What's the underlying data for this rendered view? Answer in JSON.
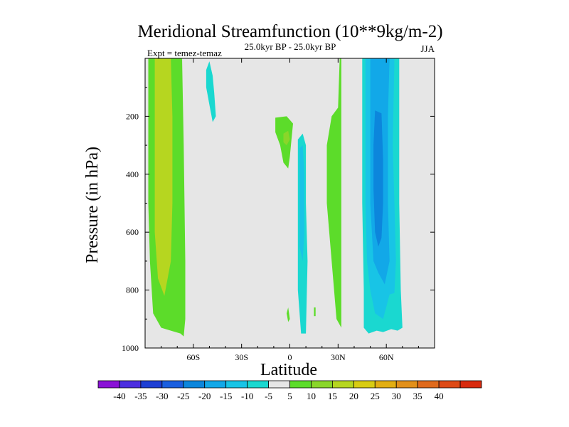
{
  "chart_data": {
    "type": "contour",
    "title": "Meridional Streamfunction (10**9kg/m-2)",
    "subtitle": "25.0kyr BP - 25.0kyr BP",
    "experiment_label": "Expt = temez-temaz",
    "season": "JJA",
    "xlabel": "Latitude",
    "ylabel": "Pressure (in hPa)",
    "xlim": [
      -90,
      90
    ],
    "ylim": [
      1000,
      0
    ],
    "x_ticks": [
      {
        "value": -60,
        "label": "60S"
      },
      {
        "value": -30,
        "label": "30S"
      },
      {
        "value": 0,
        "label": "0"
      },
      {
        "value": 30,
        "label": "30N"
      },
      {
        "value": 60,
        "label": "60N"
      }
    ],
    "y_ticks": [
      {
        "value": 200,
        "label": "200"
      },
      {
        "value": 400,
        "label": "400"
      },
      {
        "value": 600,
        "label": "600"
      },
      {
        "value": 800,
        "label": "800"
      },
      {
        "value": 1000,
        "label": "1000"
      }
    ],
    "background_color": "#e6e6e6",
    "colorbar": {
      "colors": [
        "#8a12d6",
        "#4c2ee0",
        "#1e3fd4",
        "#1a5fe0",
        "#0c86dc",
        "#12a8e8",
        "#18c4e6",
        "#1ad8d0",
        "#e6e6e6",
        "#5cdc2a",
        "#8ad62a",
        "#b6d620",
        "#d8cc12",
        "#e2ae12",
        "#e2901a",
        "#e06a1c",
        "#de4a16",
        "#d82a0e"
      ],
      "tick_labels": [
        "-40",
        "-35",
        "-30",
        "-25",
        "-20",
        "-15",
        "-10",
        "-5",
        "5",
        "10",
        "15",
        "20",
        "25",
        "30",
        "35",
        "40"
      ]
    },
    "regions": [
      {
        "name": "green-band-sh",
        "level": "5",
        "color": "#5cdc2a",
        "points": [
          [
            -88,
            0
          ],
          [
            -67,
            0
          ],
          [
            -66,
            300
          ],
          [
            -65,
            700
          ],
          [
            -65,
            900
          ],
          [
            -66,
            960
          ],
          [
            -68,
            950
          ],
          [
            -74,
            940
          ],
          [
            -80,
            930
          ],
          [
            -85,
            880
          ],
          [
            -87,
            700
          ],
          [
            -88,
            500
          ],
          [
            -88,
            0
          ]
        ]
      },
      {
        "name": "lime-band-sh",
        "level": "15",
        "color": "#b6d620",
        "points": [
          [
            -84,
            0
          ],
          [
            -74,
            0
          ],
          [
            -73,
            200
          ],
          [
            -73,
            500
          ],
          [
            -74,
            700
          ],
          [
            -78,
            820
          ],
          [
            -82,
            760
          ],
          [
            -84,
            600
          ],
          [
            -84,
            400
          ],
          [
            -84,
            0
          ]
        ]
      },
      {
        "name": "teal-strip-upper",
        "level": "-5",
        "color": "#1ad8d0",
        "points": [
          [
            -50,
            10
          ],
          [
            -48,
            60
          ],
          [
            -47,
            120
          ],
          [
            -46,
            200
          ],
          [
            -48,
            220
          ],
          [
            -50,
            160
          ],
          [
            -52,
            100
          ],
          [
            -52,
            40
          ],
          [
            -50,
            10
          ]
        ]
      },
      {
        "name": "green-patch-eq",
        "level": "5",
        "color": "#5cdc2a",
        "points": [
          [
            -9,
            205
          ],
          [
            -2,
            200
          ],
          [
            2,
            225
          ],
          [
            1,
            280
          ],
          [
            0,
            340
          ],
          [
            -1,
            380
          ],
          [
            -4,
            360
          ],
          [
            -6,
            300
          ],
          [
            -9,
            255
          ],
          [
            -9,
            205
          ]
        ]
      },
      {
        "name": "lime-spot-eq",
        "level": "10",
        "color": "#8ad62a",
        "points": [
          [
            -4,
            260
          ],
          [
            -1,
            250
          ],
          [
            0,
            280
          ],
          [
            -2,
            300
          ],
          [
            -4,
            290
          ],
          [
            -4,
            260
          ]
        ]
      },
      {
        "name": "teal-strip-eq",
        "level": "-5",
        "color": "#1ad8d0",
        "points": [
          [
            5,
            280
          ],
          [
            8,
            260
          ],
          [
            10,
            300
          ],
          [
            10,
            500
          ],
          [
            11,
            700
          ],
          [
            10,
            950
          ],
          [
            7,
            950
          ],
          [
            5,
            800
          ],
          [
            5,
            500
          ],
          [
            5,
            280
          ]
        ]
      },
      {
        "name": "cyan-core-eq",
        "level": "-10",
        "color": "#18c4e6",
        "points": [
          [
            6,
            310
          ],
          [
            8,
            300
          ],
          [
            9,
            400
          ],
          [
            9,
            600
          ],
          [
            8,
            700
          ],
          [
            6,
            650
          ],
          [
            6,
            450
          ],
          [
            6,
            310
          ]
        ]
      },
      {
        "name": "green-small-a",
        "level": "5",
        "color": "#5cdc2a",
        "points": [
          [
            -2,
            880
          ],
          [
            -1,
            860
          ],
          [
            0,
            900
          ],
          [
            -1,
            910
          ],
          [
            -2,
            880
          ]
        ]
      },
      {
        "name": "green-small-b",
        "level": "5",
        "color": "#5cdc2a",
        "points": [
          [
            15,
            860
          ],
          [
            16,
            860
          ],
          [
            16,
            890
          ],
          [
            15,
            890
          ],
          [
            15,
            860
          ]
        ]
      },
      {
        "name": "green-band-nh",
        "level": "5",
        "color": "#5cdc2a",
        "points": [
          [
            31,
            0
          ],
          [
            32,
            0
          ],
          [
            32,
            170
          ],
          [
            32,
            400
          ],
          [
            32,
            930
          ],
          [
            29,
            900
          ],
          [
            26,
            700
          ],
          [
            23,
            500
          ],
          [
            23,
            300
          ],
          [
            26,
            200
          ],
          [
            30,
            170
          ],
          [
            31,
            0
          ]
        ]
      },
      {
        "name": "teal-band-nh",
        "level": "-5",
        "color": "#1ad8d0",
        "points": [
          [
            45,
            0
          ],
          [
            68,
            0
          ],
          [
            68,
            500
          ],
          [
            69,
            800
          ],
          [
            70,
            930
          ],
          [
            67,
            940
          ],
          [
            63,
            935
          ],
          [
            58,
            945
          ],
          [
            54,
            940
          ],
          [
            49,
            950
          ],
          [
            46,
            930
          ],
          [
            46,
            800
          ],
          [
            45,
            500
          ],
          [
            45,
            0
          ]
        ]
      },
      {
        "name": "cyan-band-nh",
        "level": "-10",
        "color": "#18c4e6",
        "points": [
          [
            47,
            0
          ],
          [
            65,
            0
          ],
          [
            64,
            300
          ],
          [
            65,
            500
          ],
          [
            66,
            700
          ],
          [
            65,
            810
          ],
          [
            62,
            815
          ],
          [
            58,
            900
          ],
          [
            53,
            880
          ],
          [
            50,
            800
          ],
          [
            48,
            700
          ],
          [
            47,
            500
          ],
          [
            47,
            0
          ]
        ]
      },
      {
        "name": "blue-band-nh",
        "level": "-15",
        "color": "#12a8e8",
        "points": [
          [
            50,
            0
          ],
          [
            62,
            0
          ],
          [
            61,
            200
          ],
          [
            61,
            500
          ],
          [
            62,
            700
          ],
          [
            59,
            780
          ],
          [
            55,
            740
          ],
          [
            52,
            700
          ],
          [
            50,
            500
          ],
          [
            50,
            0
          ]
        ]
      },
      {
        "name": "deep-blue-core-nh",
        "level": "-20",
        "color": "#0c86dc",
        "points": [
          [
            53,
            180
          ],
          [
            57,
            190
          ],
          [
            58,
            350
          ],
          [
            58,
            500
          ],
          [
            57,
            620
          ],
          [
            55,
            650
          ],
          [
            53,
            600
          ],
          [
            52,
            450
          ],
          [
            52,
            300
          ],
          [
            53,
            180
          ]
        ]
      }
    ]
  }
}
